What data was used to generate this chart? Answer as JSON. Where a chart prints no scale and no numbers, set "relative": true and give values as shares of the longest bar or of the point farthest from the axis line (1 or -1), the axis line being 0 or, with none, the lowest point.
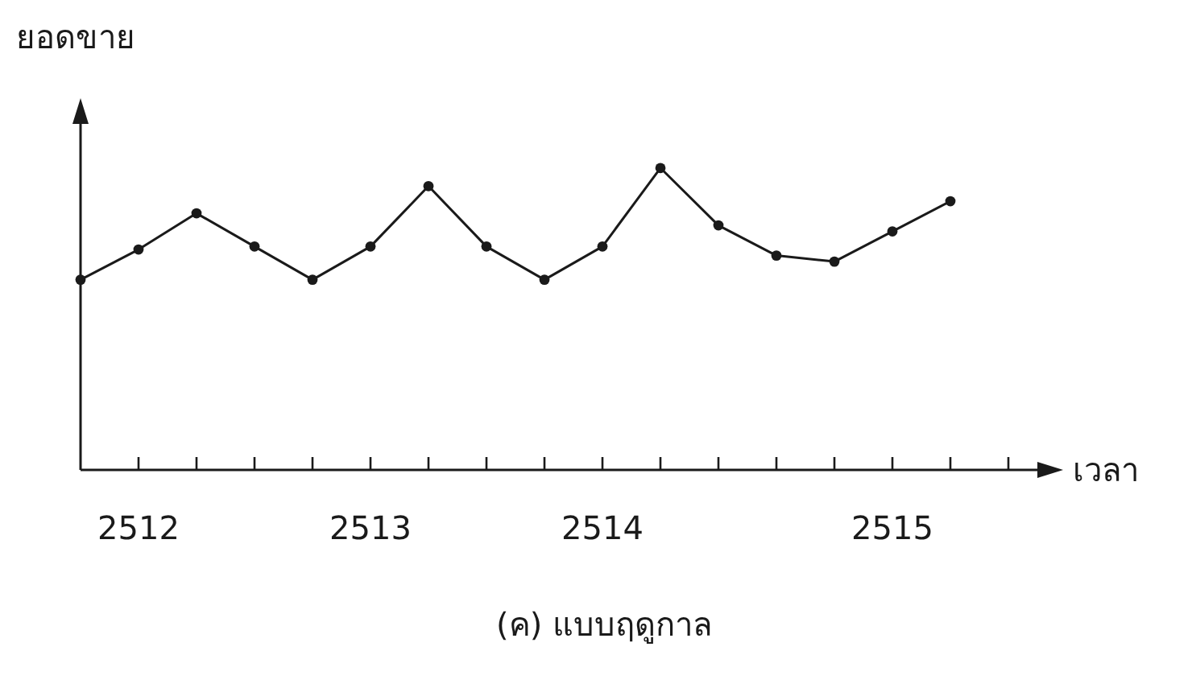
{
  "chart_data": {
    "type": "line",
    "ylabel": "ยอดขาย",
    "xlabel": "เวลา",
    "annotations": [
      "(ค) แบบฤดูกาล"
    ],
    "categories": [
      null,
      "2512",
      null,
      null,
      null,
      "2513",
      null,
      null,
      null,
      "2514",
      null,
      null,
      null,
      null,
      "2515",
      null,
      null
    ],
    "relative": true,
    "marker": "circle",
    "line_style": "solid",
    "series": [
      {
        "color": "#1a1a1a",
        "values": [
          0.63,
          0.73,
          0.85,
          0.74,
          0.63,
          0.74,
          0.94,
          0.74,
          0.63,
          0.74,
          1,
          0.81,
          0.71,
          0.69,
          0.79,
          0.89,
          null
        ]
      }
    ]
  }
}
